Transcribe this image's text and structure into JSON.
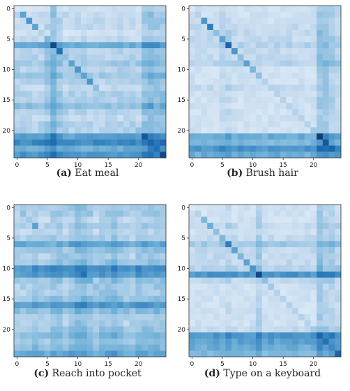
{
  "chart_data": [
    {
      "type": "heatmap",
      "letter": "(a)",
      "caption": "Eat meal",
      "size": 25,
      "xticks": [
        0,
        5,
        10,
        15,
        20
      ],
      "yticks": [
        0,
        5,
        10,
        15,
        20
      ],
      "diagonal": [
        0.15,
        0.55,
        0.6,
        0.55,
        0.3,
        0.45,
        0.9,
        0.75,
        0.4,
        0.55,
        0.6,
        0.55,
        0.6,
        0.4,
        0.35,
        0.3,
        0.35,
        0.3,
        0.3,
        0.35,
        0.4,
        0.85,
        0.8,
        0.75,
        0.9
      ],
      "row_bias": [
        0.15,
        0.2,
        0.2,
        0.2,
        0.15,
        0.2,
        0.45,
        0.25,
        0.25,
        0.3,
        0.25,
        0.3,
        0.25,
        0.2,
        0.25,
        0.25,
        0.35,
        0.25,
        0.2,
        0.25,
        0.25,
        0.5,
        0.6,
        0.45,
        0.55
      ],
      "col_bias": [
        0.05,
        0.05,
        0.05,
        0.05,
        0.05,
        0.1,
        0.2,
        0.1,
        0.05,
        0.05,
        0.05,
        0.05,
        0.05,
        0.05,
        0.05,
        0.05,
        0.05,
        0.05,
        0.05,
        0.05,
        0.05,
        0.15,
        0.2,
        0.15,
        0.15
      ]
    },
    {
      "type": "heatmap",
      "letter": "(b)",
      "caption": "Brush hair",
      "size": 25,
      "xticks": [
        0,
        5,
        10,
        15,
        20
      ],
      "yticks": [
        0,
        5,
        10,
        15,
        20
      ],
      "diagonal": [
        0.15,
        0.3,
        0.6,
        0.7,
        0.4,
        0.55,
        0.8,
        0.6,
        0.4,
        0.55,
        0.45,
        0.4,
        0.3,
        0.3,
        0.3,
        0.3,
        0.3,
        0.3,
        0.3,
        0.3,
        0.35,
        0.95,
        0.85,
        0.8,
        0.6
      ],
      "row_bias": [
        0.15,
        0.15,
        0.15,
        0.2,
        0.2,
        0.2,
        0.25,
        0.2,
        0.2,
        0.25,
        0.15,
        0.15,
        0.15,
        0.2,
        0.15,
        0.15,
        0.15,
        0.15,
        0.15,
        0.15,
        0.15,
        0.45,
        0.4,
        0.55,
        0.45
      ],
      "col_bias": [
        0.05,
        0.05,
        0.05,
        0.05,
        0.05,
        0.1,
        0.1,
        0.05,
        0.05,
        0.05,
        0.05,
        0.05,
        0.05,
        0.05,
        0.05,
        0.05,
        0.05,
        0.05,
        0.05,
        0.05,
        0.05,
        0.2,
        0.2,
        0.15,
        0.1
      ]
    },
    {
      "type": "heatmap",
      "letter": "(c)",
      "caption": "Reach into pocket",
      "size": 25,
      "xticks": [
        0,
        5,
        10,
        15,
        20
      ],
      "yticks": [
        0,
        5,
        10,
        15,
        20
      ],
      "diagonal": [
        0.3,
        0.4,
        0.35,
        0.55,
        0.3,
        0.35,
        0.45,
        0.4,
        0.4,
        0.4,
        0.7,
        0.75,
        0.5,
        0.4,
        0.4,
        0.45,
        0.55,
        0.4,
        0.35,
        0.35,
        0.35,
        0.45,
        0.4,
        0.5,
        0.55
      ],
      "row_bias": [
        0.25,
        0.25,
        0.2,
        0.25,
        0.2,
        0.25,
        0.45,
        0.3,
        0.25,
        0.3,
        0.55,
        0.5,
        0.3,
        0.25,
        0.25,
        0.3,
        0.5,
        0.35,
        0.25,
        0.25,
        0.3,
        0.35,
        0.3,
        0.35,
        0.45
      ],
      "col_bias": [
        0.05,
        0.05,
        0.05,
        0.1,
        0.05,
        0.05,
        0.1,
        0.1,
        0.05,
        0.1,
        0.15,
        0.15,
        0.1,
        0.05,
        0.1,
        0.1,
        0.15,
        0.1,
        0.05,
        0.05,
        0.1,
        0.1,
        0.1,
        0.1,
        0.1
      ]
    },
    {
      "type": "heatmap",
      "letter": "(d)",
      "caption": "Type on a keyboard",
      "size": 25,
      "xticks": [
        0,
        5,
        10,
        15,
        20
      ],
      "yticks": [
        0,
        5,
        10,
        15,
        20
      ],
      "diagonal": [
        0.15,
        0.3,
        0.45,
        0.5,
        0.4,
        0.45,
        0.7,
        0.55,
        0.45,
        0.55,
        0.6,
        0.9,
        0.4,
        0.35,
        0.3,
        0.3,
        0.3,
        0.3,
        0.3,
        0.3,
        0.35,
        0.8,
        0.75,
        0.65,
        0.8
      ],
      "row_bias": [
        0.15,
        0.15,
        0.15,
        0.2,
        0.15,
        0.2,
        0.3,
        0.2,
        0.2,
        0.2,
        0.25,
        0.55,
        0.2,
        0.15,
        0.15,
        0.15,
        0.15,
        0.15,
        0.15,
        0.15,
        0.2,
        0.55,
        0.5,
        0.45,
        0.4
      ],
      "col_bias": [
        0.05,
        0.05,
        0.05,
        0.05,
        0.05,
        0.05,
        0.1,
        0.05,
        0.05,
        0.05,
        0.05,
        0.15,
        0.05,
        0.05,
        0.05,
        0.05,
        0.05,
        0.05,
        0.05,
        0.05,
        0.05,
        0.2,
        0.15,
        0.15,
        0.1
      ]
    }
  ]
}
